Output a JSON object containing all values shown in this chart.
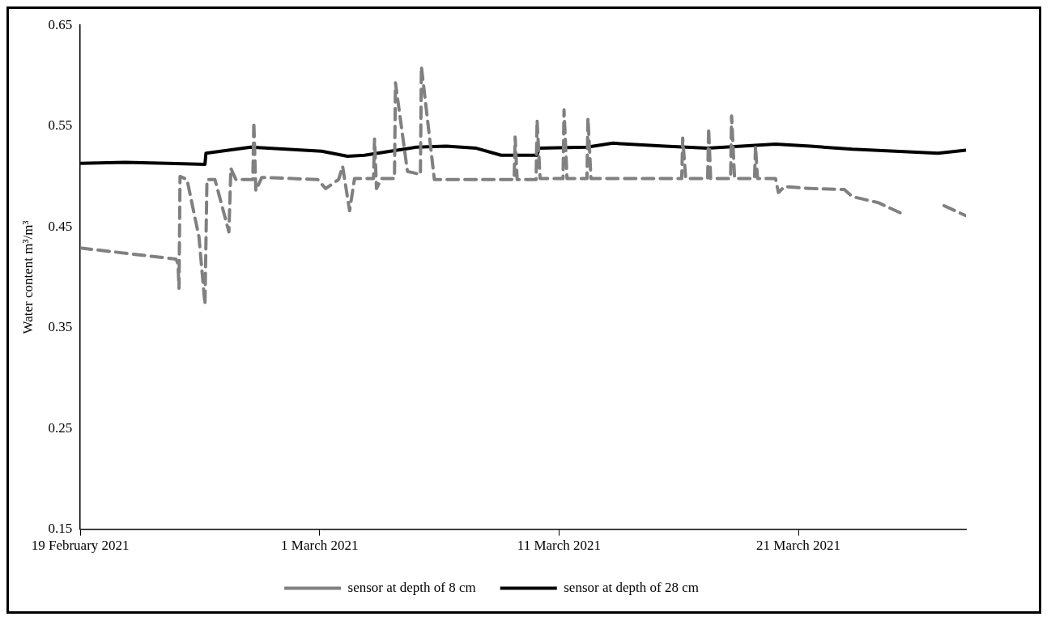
{
  "chart_data": {
    "type": "line",
    "ylabel": "Water content m³/m³",
    "xlim": [
      "2021-02-19",
      "2021-03-28"
    ],
    "xticks": [
      {
        "value": "2021-02-19",
        "label": "19 February 2021"
      },
      {
        "value": "2021-03-01",
        "label": "1 March 2021"
      },
      {
        "value": "2021-03-11",
        "label": "11 March 2021"
      },
      {
        "value": "2021-03-21",
        "label": "21 March 2021"
      }
    ],
    "ylim": [
      0.15,
      0.65
    ],
    "yticks": [
      0.15,
      0.25,
      0.35,
      0.45,
      0.55,
      0.65
    ],
    "grid": false,
    "legend": "bottom",
    "marker": "none",
    "series": [
      {
        "name": "sensor at depth of 8 cm",
        "color": "#808080",
        "line_style": "dashed",
        "x": [
          "2021-02-19T00:00",
          "2021-02-23T00:00",
          "2021-02-23T02:00",
          "2021-02-23T03:00",
          "2021-02-23T04:00",
          "2021-02-23T11:00",
          "2021-02-23T23:00",
          "2021-02-24T05:00",
          "2021-02-24T07:00",
          "2021-02-24T15:00",
          "2021-02-25T05:00",
          "2021-02-25T07:00",
          "2021-02-25T12:00",
          "2021-02-26T05:00",
          "2021-02-26T06:00",
          "2021-02-26T08:00",
          "2021-02-26T14:00",
          "2021-02-28T22:00",
          "2021-03-01T06:00",
          "2021-03-01T19:00",
          "2021-03-01T23:00",
          "2021-03-02T06:00",
          "2021-03-02T11:00",
          "2021-03-03T06:00",
          "2021-03-03T07:00",
          "2021-03-03T09:00",
          "2021-03-03T14:00",
          "2021-03-04T03:00",
          "2021-03-04T04:00",
          "2021-03-04T16:00",
          "2021-03-05T05:00",
          "2021-03-05T06:00",
          "2021-03-05T19:00",
          "2021-03-09T03:00",
          "2021-03-09T04:00",
          "2021-03-09T06:00",
          "2021-03-10T01:00",
          "2021-03-10T02:00",
          "2021-03-10T05:00",
          "2021-03-11T04:00",
          "2021-03-11T05:00",
          "2021-03-11T08:00",
          "2021-03-12T04:00",
          "2021-03-12T05:00",
          "2021-03-12T08:00",
          "2021-03-16T03:00",
          "2021-03-16T04:00",
          "2021-03-16T07:00",
          "2021-03-17T05:00",
          "2021-03-17T06:00",
          "2021-03-17T08:00",
          "2021-03-18T04:00",
          "2021-03-18T05:00",
          "2021-03-18T08:00",
          "2021-03-19T04:00",
          "2021-03-19T05:00",
          "2021-03-19T07:00",
          "2021-03-20T01:00",
          "2021-03-20T04:00",
          "2021-03-20T10:00",
          "2021-03-21T12:00",
          "2021-03-22T22:00",
          "2021-03-23T06:00",
          "2021-03-24T08:00",
          "2021-03-25T06:00",
          "2021-03-25T18:00",
          "2021-03-27T02:00",
          "2021-03-28T00:00"
        ],
        "values": [
          0.429,
          0.418,
          0.413,
          0.389,
          0.5,
          0.497,
          0.44,
          0.373,
          0.497,
          0.497,
          0.445,
          0.508,
          0.497,
          0.497,
          0.554,
          0.486,
          0.499,
          0.497,
          0.488,
          0.497,
          0.51,
          0.466,
          0.498,
          0.498,
          0.537,
          0.488,
          0.498,
          0.498,
          0.593,
          0.505,
          0.502,
          0.609,
          0.497,
          0.497,
          0.539,
          0.497,
          0.497,
          0.556,
          0.498,
          0.498,
          0.566,
          0.498,
          0.498,
          0.558,
          0.498,
          0.498,
          0.538,
          0.498,
          0.498,
          0.548,
          0.498,
          0.498,
          0.56,
          0.498,
          0.498,
          0.53,
          0.498,
          0.498,
          0.484,
          0.49,
          0.488,
          0.487,
          0.48,
          0.474,
          0.464,
          null,
          0.471,
          0.461
        ]
      },
      {
        "name": "sensor at depth of 28 cm",
        "color": "#000000",
        "line_style": "solid",
        "x": [
          "2021-02-19T00:00",
          "2021-02-20T21:00",
          "2021-02-22T16:00",
          "2021-02-24T05:00",
          "2021-02-24T06:00",
          "2021-02-26T03:00",
          "2021-03-01T02:00",
          "2021-03-02T04:00",
          "2021-03-02T21:00",
          "2021-03-03T23:00",
          "2021-03-05T01:00",
          "2021-03-06T07:00",
          "2021-03-07T13:00",
          "2021-03-08T14:00",
          "2021-03-10T02:00",
          "2021-03-10T04:00",
          "2021-03-12T04:00",
          "2021-03-13T06:00",
          "2021-03-15T10:00",
          "2021-03-17T05:00",
          "2021-03-20T01:00",
          "2021-03-21T12:00",
          "2021-03-23T06:00",
          "2021-03-25T01:00",
          "2021-03-26T20:00",
          "2021-03-28T00:00"
        ],
        "values": [
          0.513,
          0.514,
          0.513,
          0.512,
          0.523,
          0.529,
          0.525,
          0.52,
          0.521,
          0.525,
          0.529,
          0.53,
          0.528,
          0.521,
          0.521,
          0.528,
          0.529,
          0.533,
          0.53,
          0.528,
          0.532,
          0.53,
          0.527,
          0.525,
          0.523,
          0.526
        ]
      }
    ]
  }
}
